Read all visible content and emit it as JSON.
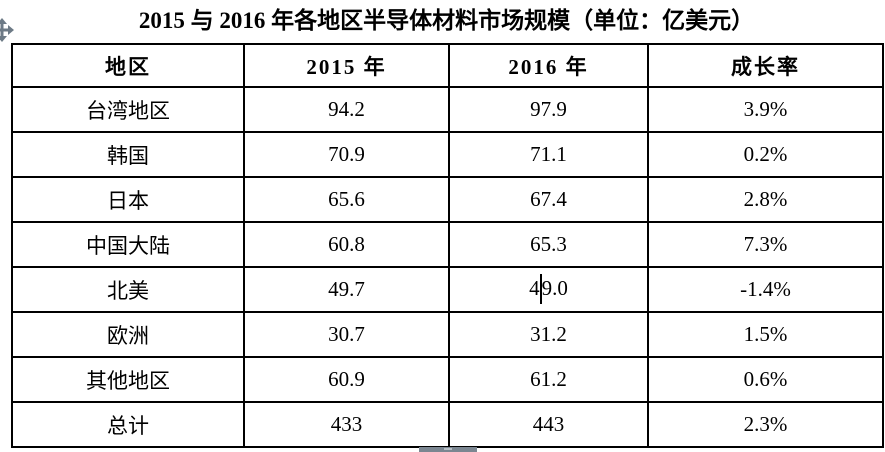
{
  "title": "2015 与 2016 年各地区半导体材料市场规模（单位：亿美元）",
  "table": {
    "columns": [
      "地区",
      "2015 年",
      "2016 年",
      "成长率"
    ],
    "rows": [
      {
        "cells": [
          "台湾地区",
          "94.2",
          "97.9",
          "3.9%"
        ]
      },
      {
        "cells": [
          "韩国",
          "70.9",
          "71.1",
          "0.2%"
        ]
      },
      {
        "cells": [
          "日本",
          "65.6",
          "67.4",
          "2.8%"
        ]
      },
      {
        "cells": [
          "中国大陆",
          "60.8",
          "65.3",
          "7.3%"
        ]
      },
      {
        "cells": [
          "北美",
          "49.7",
          "49.0",
          "-1.4%"
        ],
        "caret": {
          "cell": 2,
          "offset": 1
        }
      },
      {
        "cells": [
          "欧洲",
          "30.7",
          "31.2",
          "1.5%"
        ]
      },
      {
        "cells": [
          "其他地区",
          "60.9",
          "61.2",
          "0.6%"
        ]
      },
      {
        "cells": [
          "总计",
          "433",
          "443",
          "2.3%"
        ]
      }
    ]
  },
  "icons": {
    "move_handle": "table-move-handle-icon",
    "scrollbar": "horizontal-scrollbar-thumb"
  },
  "colors": {
    "text": "#000000",
    "border": "#000000",
    "handle_gray": "#6d7a86",
    "scrollbar_gray": "#7b8691"
  }
}
